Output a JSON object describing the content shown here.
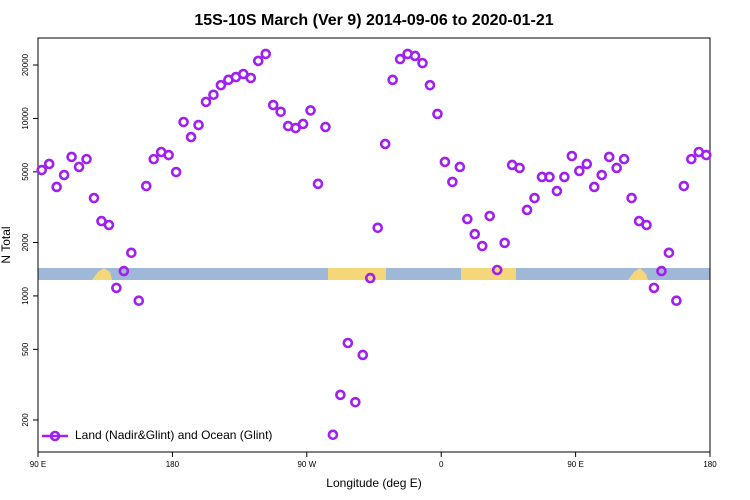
{
  "chart_data": {
    "type": "scatter",
    "title": "15S-10S March (Ver 9)   2014-09-06 to 2020-01-21",
    "xlabel": "Longitude (deg E)",
    "ylabel": "N Total",
    "log_y": true,
    "legend": "bottom-left",
    "xlim": [
      90,
      540
    ],
    "xticks": [
      {
        "value": 90,
        "label": "90 E"
      },
      {
        "value": 180,
        "label": "180"
      },
      {
        "value": 270,
        "label": "90 W"
      },
      {
        "value": 360,
        "label": "0"
      },
      {
        "value": 450,
        "label": "90 E"
      },
      {
        "value": 540,
        "label": "180"
      }
    ],
    "ylim": [
      132,
      28400
    ],
    "yticks": [
      200,
      500,
      1000,
      2000,
      5000,
      10000,
      20000
    ],
    "series": [
      {
        "name": "Land (Nadir&Glint) and Ocean (Glint)",
        "color": "#a020f0",
        "x": [
          92.5,
          97.5,
          102.5,
          107.5,
          112.5,
          117.5,
          122.5,
          127.5,
          132.5,
          137.5,
          142.5,
          147.5,
          152.5,
          157.5,
          162.5,
          167.5,
          172.5,
          177.5,
          182.5,
          187.5,
          192.5,
          197.5,
          202.5,
          207.5,
          212.5,
          217.5,
          222.5,
          227.5,
          232.5,
          237.5,
          242.5,
          247.5,
          252.5,
          257.5,
          262.5,
          267.5,
          272.5,
          277.5,
          282.5,
          287.5,
          292.5,
          297.5,
          302.5,
          307.5,
          312.5,
          317.5,
          322.5,
          327.5,
          332.5,
          337.5,
          342.5,
          347.5,
          352.5,
          357.5,
          362.5,
          367.5,
          372.5,
          377.5,
          382.5,
          387.5,
          392.5,
          397.5,
          402.5,
          407.5,
          412.5,
          417.5,
          422.5,
          427.5,
          432.5,
          437.5,
          442.5,
          447.5,
          452.5,
          457.5,
          462.5,
          467.5,
          472.5,
          477.5,
          482.5,
          487.5,
          492.5,
          497.5,
          502.5,
          507.5,
          512.5,
          517.5,
          522.5,
          527.5,
          532.5,
          537.5
        ],
        "values": [
          5120,
          5540,
          4110,
          4800,
          6070,
          5330,
          5900,
          3560,
          2640,
          2510,
          1110,
          1380,
          1750,
          940,
          4160,
          5900,
          6470,
          6220,
          4990,
          9550,
          7850,
          9180,
          12400,
          13600,
          15400,
          16500,
          17100,
          17800,
          16900,
          21100,
          23100,
          11900,
          10900,
          9060,
          8830,
          9310,
          11100,
          4280,
          8950,
          165,
          277,
          543,
          252,
          465,
          1260,
          2420,
          7180,
          16500,
          21600,
          23100,
          22500,
          20500,
          15400,
          10600,
          5690,
          4390,
          5330,
          2710,
          2230,
          1910,
          2820,
          1400,
          1990,
          5470,
          5260,
          3050,
          3560,
          4680,
          4680,
          3900,
          4680,
          6140,
          5060,
          5540,
          4110,
          4800,
          6070,
          5260,
          5900,
          3560,
          2640,
          2510,
          1110,
          1380,
          1750,
          940,
          4160,
          5900,
          6470,
          6220
        ]
      }
    ]
  }
}
